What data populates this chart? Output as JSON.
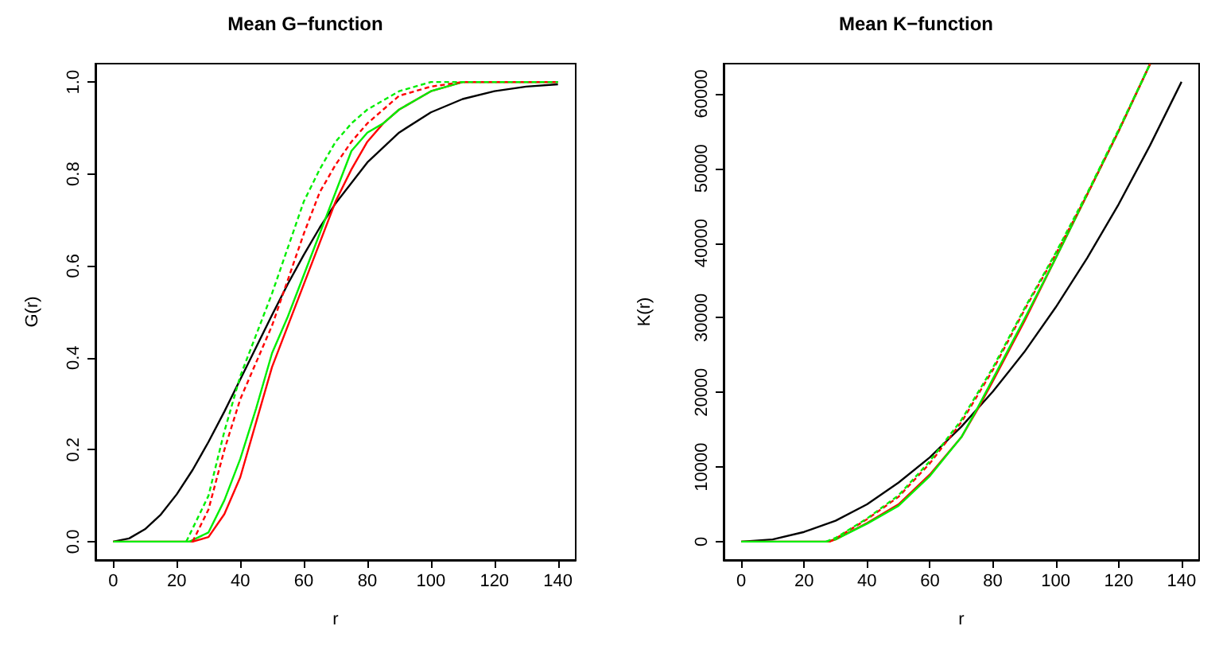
{
  "chart_data": [
    {
      "type": "line",
      "title": "Mean G−function",
      "xlabel": "r",
      "ylabel": "G(r)",
      "xlim": [
        -5.6,
        145.6
      ],
      "ylim": [
        -0.04,
        1.04
      ],
      "xticks": [
        0,
        20,
        40,
        60,
        80,
        100,
        120,
        140
      ],
      "yticks": [
        {
          "value": 0,
          "label": "0.0"
        },
        {
          "value": 0.2,
          "label": "0.2"
        },
        {
          "value": 0.4,
          "label": "0.4"
        },
        {
          "value": 0.6,
          "label": "0.6"
        },
        {
          "value": 0.8,
          "label": "0.8"
        },
        {
          "value": 1,
          "label": "1.0"
        }
      ],
      "grid": false,
      "marker": "none",
      "series": [
        {
          "color": "#000000",
          "line_style": "solid",
          "x": [
            0,
            5,
            10,
            15,
            20,
            25,
            30,
            35,
            40,
            45,
            50,
            55,
            60,
            65,
            70,
            80,
            90,
            100,
            110,
            120,
            130,
            140
          ],
          "values": [
            0,
            0.007,
            0.027,
            0.059,
            0.103,
            0.156,
            0.217,
            0.283,
            0.353,
            0.423,
            0.493,
            0.561,
            0.624,
            0.683,
            0.736,
            0.825,
            0.89,
            0.934,
            0.963,
            0.98,
            0.99,
            0.995
          ]
        },
        {
          "color": "#ff0000",
          "line_style": "solid",
          "x": [
            0,
            25,
            30,
            35,
            40,
            45,
            50,
            55,
            60,
            65,
            70,
            75,
            80,
            85,
            90,
            95,
            100,
            105,
            110,
            140
          ],
          "values": [
            0,
            0,
            0.01,
            0.06,
            0.14,
            0.26,
            0.38,
            0.47,
            0.56,
            0.65,
            0.74,
            0.81,
            0.87,
            0.91,
            0.94,
            0.96,
            0.98,
            0.99,
            1,
            1
          ]
        },
        {
          "color": "#00ee00",
          "line_style": "solid",
          "x": [
            0,
            24,
            30,
            35,
            40,
            45,
            50,
            55,
            60,
            65,
            70,
            75,
            80,
            85,
            90,
            95,
            100,
            105,
            110,
            140
          ],
          "values": [
            0,
            0,
            0.02,
            0.09,
            0.18,
            0.29,
            0.41,
            0.49,
            0.58,
            0.67,
            0.76,
            0.85,
            0.89,
            0.91,
            0.94,
            0.96,
            0.98,
            0.99,
            1,
            1
          ]
        },
        {
          "color": "#ff0000",
          "line_style": "dashed",
          "x": [
            25,
            30,
            35,
            40,
            45,
            50,
            55,
            60,
            65,
            70,
            75,
            80,
            85,
            90,
            95,
            100,
            110,
            140
          ],
          "values": [
            0,
            0.07,
            0.2,
            0.31,
            0.39,
            0.47,
            0.57,
            0.67,
            0.76,
            0.82,
            0.87,
            0.91,
            0.94,
            0.97,
            0.98,
            0.99,
            1,
            1
          ]
        },
        {
          "color": "#00ee00",
          "line_style": "dashed",
          "x": [
            23,
            30,
            35,
            40,
            45,
            50,
            55,
            60,
            65,
            70,
            75,
            80,
            85,
            90,
            95,
            100,
            140
          ],
          "values": [
            0,
            0.1,
            0.24,
            0.36,
            0.45,
            0.54,
            0.64,
            0.74,
            0.81,
            0.87,
            0.91,
            0.94,
            0.96,
            0.98,
            0.99,
            1,
            1
          ]
        }
      ]
    },
    {
      "type": "line",
      "title": "Mean K−function",
      "xlabel": "r",
      "ylabel": "K(r)",
      "xlim": [
        -5.6,
        145.6
      ],
      "ylim": [
        -2460,
        64040
      ],
      "xticks": [
        0,
        20,
        40,
        60,
        80,
        100,
        120,
        140
      ],
      "yticks": [
        0,
        10000,
        20000,
        30000,
        40000,
        50000,
        60000
      ],
      "grid": false,
      "marker": "none",
      "series": [
        {
          "color": "#000000",
          "line_style": "solid",
          "x": [
            0,
            10,
            20,
            30,
            40,
            50,
            60,
            70,
            80,
            90,
            100,
            110,
            120,
            130,
            140
          ],
          "values": [
            0,
            300,
            1300,
            2800,
            5000,
            7900,
            11300,
            15400,
            20100,
            25400,
            31400,
            38000,
            45200,
            53100,
            61600
          ]
        },
        {
          "color": "#ff0000",
          "line_style": "solid",
          "x": [
            0,
            28,
            30,
            40,
            50,
            60,
            70,
            75,
            80,
            90,
            100,
            110,
            120,
            130
          ],
          "values": [
            0,
            0,
            300,
            2500,
            5000,
            9000,
            14000,
            17600,
            21500,
            29500,
            38000,
            46500,
            55000,
            64000
          ]
        },
        {
          "color": "#00ee00",
          "line_style": "solid",
          "x": [
            0,
            27,
            30,
            40,
            50,
            60,
            70,
            75,
            80,
            90,
            100,
            110,
            120,
            130
          ],
          "values": [
            0,
            0,
            300,
            2400,
            4800,
            8800,
            14000,
            17800,
            21800,
            29800,
            38000,
            46500,
            55000,
            64000
          ]
        },
        {
          "color": "#ff0000",
          "line_style": "dashed",
          "x": [
            28,
            30,
            40,
            50,
            60,
            70,
            80,
            90,
            100,
            110,
            120,
            130
          ],
          "values": [
            0,
            400,
            3000,
            6000,
            10500,
            16000,
            23000,
            31000,
            38500,
            46500,
            55000,
            64000
          ]
        },
        {
          "color": "#00ee00",
          "line_style": "dashed",
          "x": [
            27,
            30,
            40,
            50,
            60,
            70,
            80,
            90,
            100,
            110,
            120,
            130
          ],
          "values": [
            0,
            500,
            3100,
            6200,
            10800,
            16300,
            23300,
            31200,
            38700,
            46700,
            55200,
            64000
          ]
        }
      ]
    }
  ]
}
